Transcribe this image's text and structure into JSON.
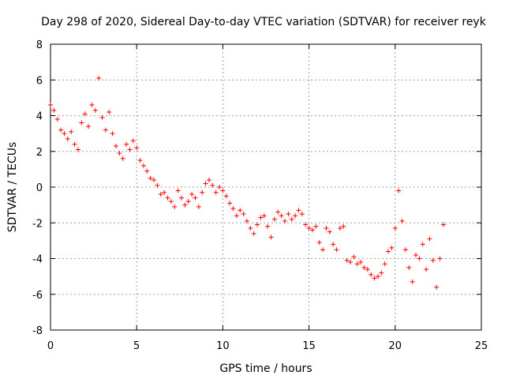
{
  "chart_data": {
    "type": "scatter",
    "title": "Day 298 of 2020, Sidereal Day-to-day VTEC variation (SDTVAR) for receiver reyk",
    "xlabel": "GPS time / hours",
    "ylabel": "SDTVAR / TECUs",
    "xlim": [
      0,
      25
    ],
    "ylim": [
      -8,
      8
    ],
    "xticks": [
      0,
      5,
      10,
      15,
      20,
      25
    ],
    "yticks": [
      -8,
      -6,
      -4,
      -2,
      0,
      2,
      4,
      6,
      8
    ],
    "xtick_labels": [
      "0",
      "5",
      "10",
      "15",
      "20",
      "25"
    ],
    "ytick_labels": [
      "-8",
      "-6",
      "-4",
      "-2",
      "0",
      "2",
      "4",
      "6",
      "8"
    ],
    "grid": true,
    "marker": "+",
    "color": "#ff0000",
    "series": [
      {
        "name": "SDTVAR",
        "x": [
          0.0,
          0.2,
          0.4,
          0.6,
          0.8,
          1.0,
          1.2,
          1.4,
          1.6,
          1.8,
          2.0,
          2.2,
          2.4,
          2.6,
          2.8,
          3.0,
          3.2,
          3.4,
          3.6,
          3.8,
          4.0,
          4.2,
          4.4,
          4.6,
          4.8,
          5.0,
          5.2,
          5.4,
          5.6,
          5.8,
          6.0,
          6.2,
          6.4,
          6.6,
          6.8,
          7.0,
          7.2,
          7.4,
          7.6,
          7.8,
          8.0,
          8.2,
          8.4,
          8.6,
          8.8,
          9.0,
          9.2,
          9.4,
          9.6,
          9.8,
          10.0,
          10.2,
          10.4,
          10.6,
          10.8,
          11.0,
          11.2,
          11.4,
          11.6,
          11.8,
          12.0,
          12.2,
          12.4,
          12.6,
          12.8,
          13.0,
          13.2,
          13.4,
          13.6,
          13.8,
          14.0,
          14.2,
          14.4,
          14.6,
          14.8,
          15.0,
          15.2,
          15.4,
          15.6,
          15.8,
          16.0,
          16.2,
          16.4,
          16.6,
          16.8,
          17.0,
          17.2,
          17.4,
          17.6,
          17.8,
          18.0,
          18.2,
          18.4,
          18.6,
          18.8,
          19.0,
          19.2,
          19.4,
          19.6,
          19.8,
          20.0,
          20.2,
          20.4,
          20.6,
          20.8,
          21.0,
          21.2,
          21.4,
          21.6,
          21.8,
          22.0,
          22.2,
          22.4,
          22.6,
          22.8
        ],
        "y": [
          4.6,
          4.3,
          3.8,
          3.2,
          3.0,
          2.7,
          3.1,
          2.4,
          2.1,
          3.6,
          4.1,
          3.4,
          4.6,
          4.3,
          6.1,
          3.9,
          3.2,
          4.2,
          3.0,
          2.3,
          1.9,
          1.6,
          2.4,
          2.1,
          2.6,
          2.2,
          1.5,
          1.2,
          0.9,
          0.5,
          0.4,
          0.1,
          -0.4,
          -0.3,
          -0.6,
          -0.8,
          -1.1,
          -0.2,
          -0.6,
          -1.0,
          -0.8,
          -0.4,
          -0.6,
          -1.1,
          -0.3,
          0.2,
          0.4,
          0.1,
          -0.3,
          0.0,
          -0.2,
          -0.5,
          -0.9,
          -1.2,
          -1.6,
          -1.3,
          -1.5,
          -1.9,
          -2.3,
          -2.6,
          -2.1,
          -1.7,
          -1.6,
          -2.2,
          -2.8,
          -1.8,
          -1.4,
          -1.6,
          -1.9,
          -1.5,
          -1.8,
          -1.6,
          -1.3,
          -1.5,
          -2.1,
          -2.3,
          -2.4,
          -2.2,
          -3.1,
          -3.5,
          -2.3,
          -2.5,
          -3.2,
          -3.5,
          -2.3,
          -2.2,
          -4.1,
          -4.2,
          -3.9,
          -4.3,
          -4.2,
          -4.5,
          -4.6,
          -4.9,
          -5.1,
          -5.0,
          -4.8,
          -4.3,
          -3.6,
          -3.4,
          -2.3,
          -0.2,
          -1.9,
          -3.5,
          -4.5,
          -5.3,
          -3.8,
          -4.0,
          -3.2,
          -4.6,
          -2.9,
          -4.1,
          -5.6,
          -4.0,
          -2.1
        ]
      }
    ]
  }
}
